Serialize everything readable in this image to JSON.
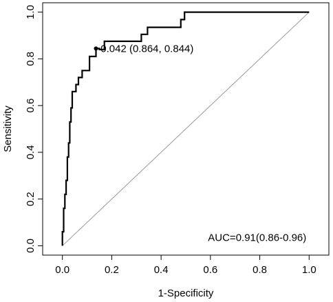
{
  "chart_data": {
    "type": "line",
    "xlabel": "1-Specificity",
    "ylabel": "Sensitivity",
    "xlim": [
      -0.08,
      1.08
    ],
    "ylim": [
      -0.04,
      1.04
    ],
    "x_ticks": [
      0.0,
      0.2,
      0.4,
      0.6,
      0.8,
      1.0
    ],
    "y_ticks": [
      0.0,
      0.2,
      0.4,
      0.6,
      0.8,
      1.0
    ],
    "x_tick_labels": [
      "0.0",
      "0.2",
      "0.4",
      "0.6",
      "0.8",
      "1.0"
    ],
    "y_tick_labels": [
      "0.0",
      "0.2",
      "0.4",
      "0.6",
      "0.8",
      "1.0"
    ],
    "grid": false,
    "diagonal": {
      "x": [
        0,
        1
      ],
      "y": [
        0,
        1
      ],
      "color": "#999999"
    },
    "series": [
      {
        "color": "#000000",
        "x": [
          0,
          0,
          0.005,
          0.005,
          0.01,
          0.01,
          0.015,
          0.015,
          0.02,
          0.02,
          0.025,
          0.025,
          0.03,
          0.03,
          0.035,
          0.035,
          0.04,
          0.04,
          0.045,
          0.045,
          0.055,
          0.055,
          0.065,
          0.065,
          0.08,
          0.08,
          0.11,
          0.11,
          0.12,
          0.12,
          0.136,
          0.136,
          0.15,
          0.15,
          0.17,
          0.17,
          0.32,
          0.32,
          0.345,
          0.345,
          0.48,
          0.48,
          0.495,
          0.495,
          1.0
        ],
        "y": [
          0,
          0.06,
          0.06,
          0.16,
          0.16,
          0.22,
          0.22,
          0.28,
          0.28,
          0.38,
          0.38,
          0.44,
          0.44,
          0.53,
          0.53,
          0.59,
          0.59,
          0.66,
          0.66,
          0.66,
          0.66,
          0.69,
          0.69,
          0.72,
          0.72,
          0.75,
          0.75,
          0.81,
          0.81,
          0.81,
          0.81,
          0.844,
          0.844,
          0.84,
          0.84,
          0.875,
          0.875,
          0.905,
          0.905,
          0.935,
          0.935,
          0.968,
          0.968,
          1.0,
          1.0
        ]
      }
    ],
    "point": {
      "x": 0.136,
      "y": 0.844
    },
    "annotations": [
      {
        "text": "0.042 (0.864, 0.844)",
        "x": 0.155,
        "y": 0.844
      },
      {
        "text": "AUC=0.91(0.86-0.96)",
        "x": 0.59,
        "y": 0.02
      }
    ]
  }
}
